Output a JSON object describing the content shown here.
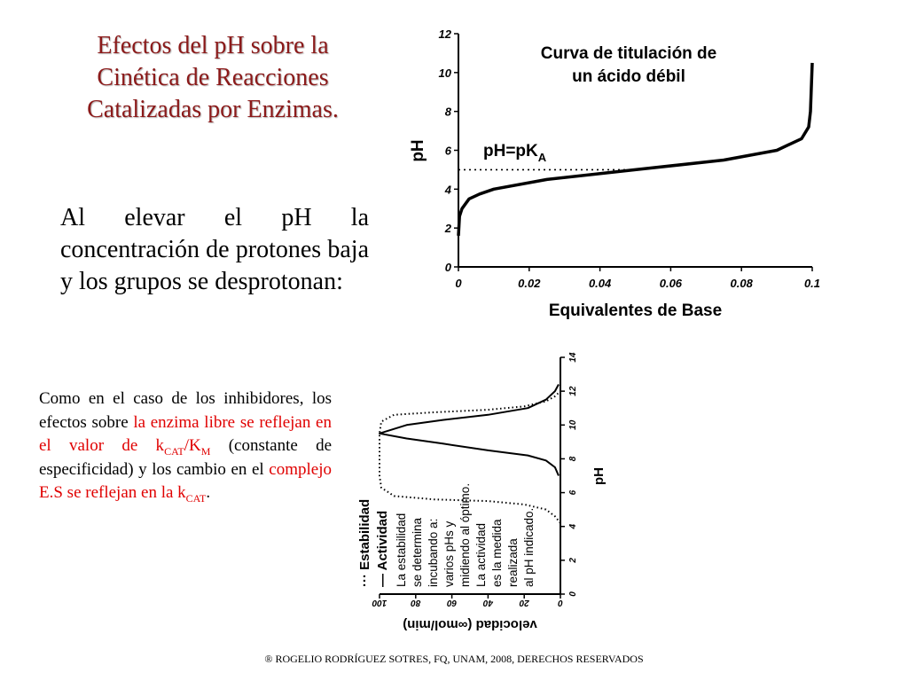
{
  "slide": {
    "title_lines": [
      "Efectos del pH sobre la",
      "Cinética de Reacciones",
      "Catalizadas por Enzimas."
    ],
    "paragraph1": "Al elevar el  pH la concentración de protones baja y los grupos se desprotonan:",
    "paragraph2": {
      "p1": "Como en el caso de los inhibidores, los efectos sobre ",
      "red1": "la enzima libre se reflejan en el valor de k",
      "sub1": "CAT",
      "red2": "/K",
      "sub2": "M",
      "p2": " (constante de especificidad) y los cambio en el ",
      "red3": "complejo E.S se reflejan en la k",
      "sub3": "CAT",
      "p3": "."
    },
    "footer": "® ROGELIO RODRÍGUEZ SOTRES, FQ, UNAM, 2008, DERECHOS RESERVADOS"
  },
  "chart_data": [
    {
      "type": "line",
      "title_lines": [
        "Curva de titulación de",
        "un ácido débil"
      ],
      "xlabel": "Equivalentes de Base",
      "ylabel": "pH",
      "xlim": [
        0,
        0.1
      ],
      "ylim": [
        0,
        12
      ],
      "xticks": [
        "0",
        "0.02",
        "0.04",
        "0.06",
        "0.08",
        "0.1"
      ],
      "yticks": [
        "0",
        "2",
        "4",
        "6",
        "8",
        "10",
        "12"
      ],
      "annotation": {
        "text": "pH=pK",
        "sub": "A",
        "y": 5
      },
      "series": [
        {
          "x": [
            0,
            0.0003,
            0.001,
            0.003,
            0.006,
            0.01,
            0.025,
            0.05,
            0.075,
            0.09,
            0.097,
            0.099,
            0.0995,
            0.1
          ],
          "y": [
            1.6,
            2.6,
            3.0,
            3.5,
            3.75,
            4.0,
            4.5,
            5.0,
            5.5,
            6.0,
            6.6,
            7.2,
            8.0,
            10.5
          ]
        }
      ]
    },
    {
      "type": "line",
      "xlabel": "velocidad (",
      "xlabel_symbol": "∞",
      "xlabel_end": "mol/min)",
      "ylabel": "pH",
      "xlim": [
        0,
        100
      ],
      "ylim": [
        0,
        14
      ],
      "xticks": [
        "0",
        "20",
        "40",
        "60",
        "80",
        "100"
      ],
      "yticks": [
        "0",
        "2",
        "4",
        "6",
        "8",
        "10",
        "12",
        "14"
      ],
      "legend": [
        {
          "marker": "···",
          "label": "Estabilidad"
        },
        {
          "marker": "—",
          "label": "Actividad"
        }
      ],
      "caption_lines": [
        "La estabilidad",
        "se determina",
        "incubando a:",
        "varios pHs y",
        "midiendo al óptimo.",
        "La actividad",
        "es la medida",
        "realizada",
        "al pH indicado."
      ],
      "series": [
        {
          "style": "solid",
          "x": [
            1,
            3,
            8,
            18,
            40,
            65,
            85,
            100,
            85,
            65,
            40,
            18,
            8,
            3,
            1
          ],
          "y": [
            7.0,
            7.5,
            7.9,
            8.2,
            8.5,
            8.9,
            9.2,
            9.5,
            10.0,
            10.3,
            10.6,
            11.0,
            11.5,
            12.0,
            12.4
          ]
        },
        {
          "style": "dotted",
          "x": [
            0,
            3,
            8,
            20,
            40,
            70,
            92,
            99,
            100,
            100,
            99,
            92,
            70,
            40,
            20,
            8,
            3,
            0
          ],
          "y": [
            4.2,
            4.6,
            5.0,
            5.3,
            5.5,
            5.6,
            5.8,
            6.3,
            7.0,
            9.5,
            10.2,
            10.6,
            10.75,
            10.9,
            11.1,
            11.4,
            11.7,
            12.0
          ]
        }
      ]
    }
  ]
}
